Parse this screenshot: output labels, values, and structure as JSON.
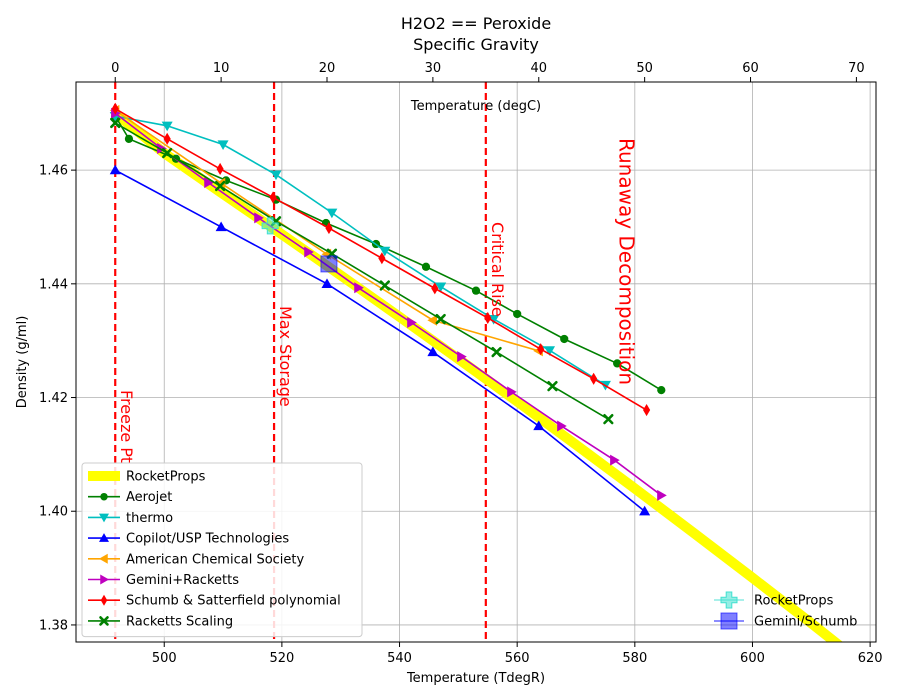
{
  "chart_data": {
    "type": "line",
    "title": "H2O2 == Peroxide",
    "subtitle": "Specific Gravity",
    "xlabel": "Temperature (TdegR)",
    "ylabel": "Density (g/ml)",
    "x2label": "Temperature (degC)",
    "xlim": [
      485,
      621
    ],
    "ylim": [
      1.377,
      1.4755
    ],
    "xticks": [
      500,
      520,
      540,
      560,
      580,
      600,
      620
    ],
    "yticks": [
      1.38,
      1.4,
      1.42,
      1.44,
      1.46
    ],
    "x2ticks": [
      0,
      10,
      20,
      30,
      40,
      50,
      60,
      70
    ],
    "grid": true,
    "series": [
      {
        "name": "RocketProps",
        "color": "#ffff00",
        "marker": "none",
        "x": [
          491.67,
          500,
          510,
          520,
          530,
          540,
          550,
          560,
          570,
          580,
          590,
          600,
          610,
          615
        ],
        "y": [
          1.47,
          1.463,
          1.4558,
          1.4487,
          1.4415,
          1.4342,
          1.4268,
          1.4193,
          1.4117,
          1.404,
          1.3962,
          1.3883,
          1.3803,
          1.3762
        ]
      },
      {
        "name": "Aerojet",
        "color": "#008000",
        "marker": "circle",
        "x": [
          491.67,
          494,
          502,
          510.5,
          519,
          527.5,
          536,
          544.5,
          553,
          560,
          568,
          577,
          584.5
        ],
        "y": [
          1.4695,
          1.4655,
          1.462,
          1.4582,
          1.4548,
          1.4507,
          1.447,
          1.443,
          1.4388,
          1.4347,
          1.4303,
          1.426,
          1.4213
        ]
      },
      {
        "name": "thermo",
        "color": "#00bfbf",
        "marker": "triangle-down",
        "x": [
          491.67,
          500.5,
          510,
          519,
          528.5,
          537.5,
          547,
          556,
          565.5,
          575
        ],
        "y": [
          1.4695,
          1.4678,
          1.4645,
          1.4592,
          1.4525,
          1.4458,
          1.4395,
          1.4338,
          1.4283,
          1.4222
        ]
      },
      {
        "name": "Copilot/USP Technologies",
        "color": "#0000ff",
        "marker": "triangle-up",
        "x": [
          491.67,
          509.67,
          527.67,
          545.67,
          563.67,
          581.67
        ],
        "y": [
          1.46,
          1.45,
          1.44,
          1.428,
          1.415,
          1.4
        ]
      },
      {
        "name": "American Chemical Society",
        "color": "#ffa500",
        "marker": "triangle-left",
        "x": [
          491.67,
          509.67,
          527.67,
          545.67,
          563.67
        ],
        "y": [
          1.4705,
          1.4577,
          1.4452,
          1.4336,
          1.4282
        ]
      },
      {
        "name": "Gemini+Racketts",
        "color": "#bf00bf",
        "marker": "triangle-right",
        "x": [
          491.67,
          499.5,
          507.5,
          516,
          524.5,
          533,
          542,
          550.5,
          559,
          567.5,
          576.5,
          584.5
        ],
        "y": [
          1.47,
          1.4638,
          1.4578,
          1.4516,
          1.4456,
          1.4393,
          1.4332,
          1.4272,
          1.421,
          1.415,
          1.409,
          1.4028
        ]
      },
      {
        "name": "Schumb & Satterfield polynomial",
        "color": "#ff0000",
        "marker": "diamond",
        "x": [
          491.67,
          500.5,
          509.5,
          518.5,
          528,
          537,
          546,
          555,
          564,
          573,
          582
        ],
        "y": [
          1.4708,
          1.4655,
          1.4602,
          1.4552,
          1.4498,
          1.4445,
          1.4392,
          1.434,
          1.4285,
          1.4233,
          1.4178
        ]
      },
      {
        "name": "Racketts Scaling",
        "color": "#008000",
        "marker": "x",
        "x": [
          491.67,
          500.5,
          509.5,
          519,
          528.5,
          537.5,
          547,
          556.5,
          566,
          575.5
        ],
        "y": [
          1.4683,
          1.463,
          1.4572,
          1.451,
          1.4453,
          1.4397,
          1.4338,
          1.428,
          1.422,
          1.4162
        ]
      }
    ],
    "points": [
      {
        "name": "RocketProps",
        "color": "#40e0d0",
        "marker": "plus",
        "x": 518,
        "y": 1.4502
      },
      {
        "name": "Gemini/Schumb",
        "color": "#0000ff",
        "marker": "square",
        "x": 528,
        "y": 1.4435
      }
    ],
    "vlines": [
      {
        "x": 491.67,
        "label": "Freeze Pt"
      },
      {
        "x": 518.67,
        "label": "Max Storage"
      },
      {
        "x": 554.67,
        "label": "Critical Rise"
      }
    ],
    "annotation": {
      "text": "Runaway Decomposition",
      "x": 575,
      "y": 1.4495
    },
    "legend_placement": "lower-left",
    "legend2_placement": "lower-right"
  }
}
